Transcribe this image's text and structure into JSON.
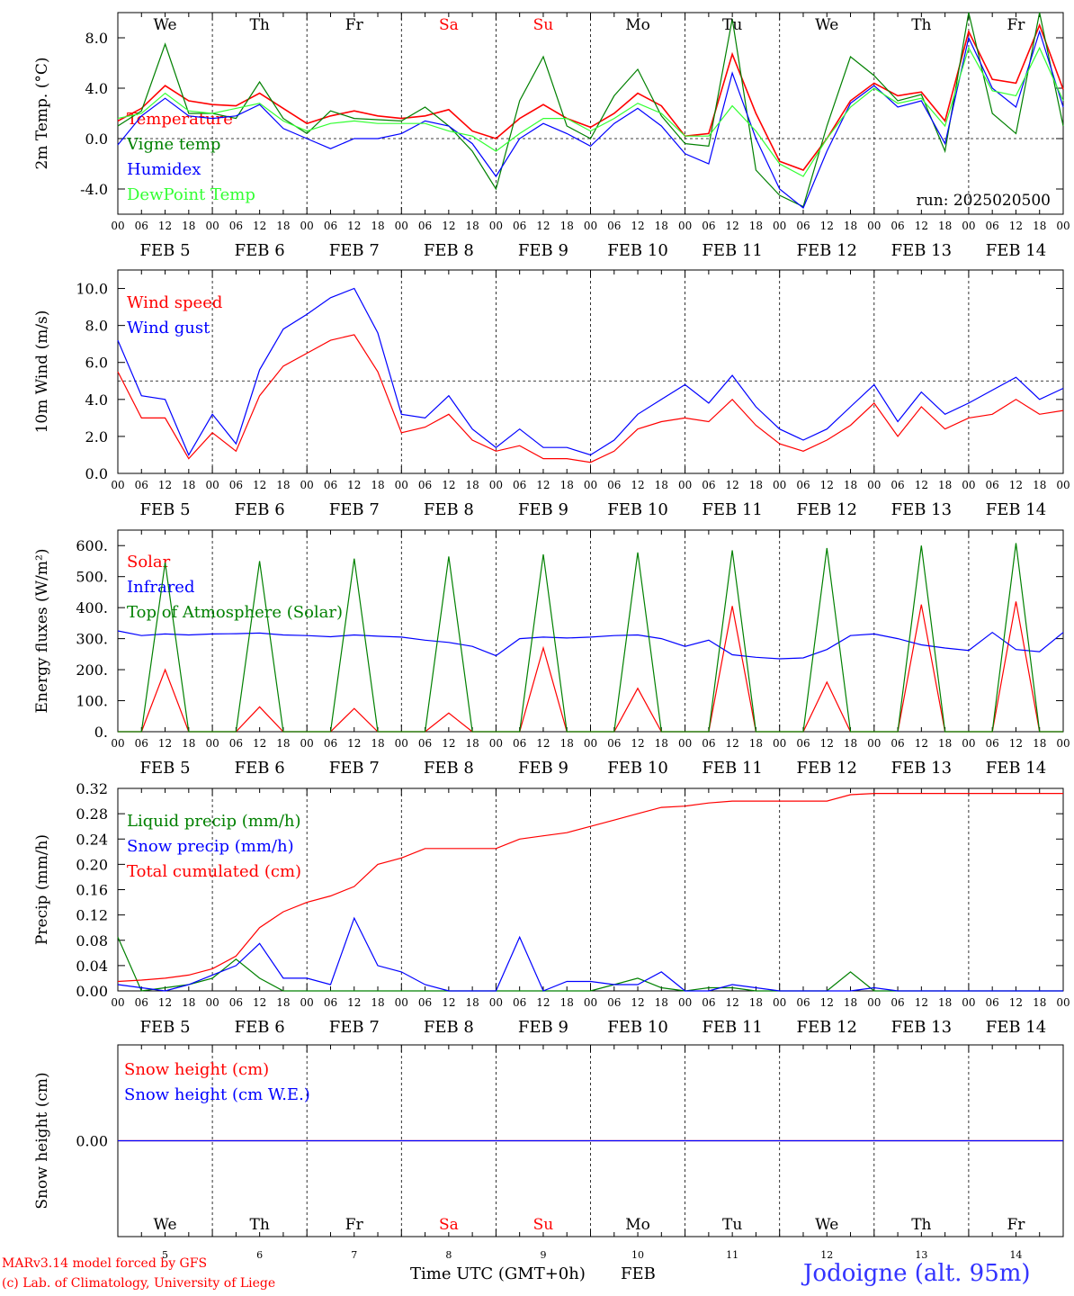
{
  "colors": {
    "red": "#ff0000",
    "green": "#008000",
    "blue": "#0000ff",
    "lightgreen": "#33ff33",
    "grid": "#000000",
    "location": "#3333ff"
  },
  "days": [
    "We",
    "Th",
    "Fr",
    "Sa",
    "Su",
    "Mo",
    "Tu",
    "We",
    "Th",
    "Fr"
  ],
  "weekend_day_indices": [
    3,
    4
  ],
  "date_labels": [
    "FEB  5",
    "FEB  6",
    "FEB  7",
    "FEB  8",
    "FEB  9",
    "FEB 10",
    "FEB 11",
    "FEB 12",
    "FEB 13",
    "FEB 14"
  ],
  "hour_labels": [
    "00",
    "06",
    "12",
    "18"
  ],
  "final_hour_label": "00",
  "bottom_day_numbers": [
    "5",
    "6",
    "7",
    "8",
    "9",
    "10",
    "11",
    "12",
    "13",
    "14"
  ],
  "xlabel": "Time UTC (GMT+0h)",
  "xlabel_month": "FEB",
  "credit_line1": "MARv3.14 model forced by GFS",
  "credit_line2": "(c) Lab. of Climatology, University of Liege",
  "location": "Jodoigne (alt. 95m)",
  "chart_data": [
    {
      "type": "line",
      "ylabel": "2m Temp. (°C)",
      "ylim": [
        -6,
        10
      ],
      "yticks": [
        "8.0",
        "4.0",
        "0.0",
        "-4.0"
      ],
      "ytick_values": [
        8,
        4,
        0,
        -4
      ],
      "reference_line": 0,
      "run_label": "run: 2025020500",
      "x_hours": [
        0,
        6,
        12,
        18,
        24,
        30,
        36,
        42,
        48,
        54,
        60,
        66,
        72,
        78,
        84,
        90,
        96,
        102,
        108,
        114,
        120,
        126,
        132,
        138,
        144,
        150,
        156,
        162,
        168,
        174,
        180,
        186,
        192,
        198,
        204,
        210,
        216,
        222,
        228,
        234,
        240
      ],
      "series": [
        {
          "name": "Temperature",
          "color": "red",
          "values": [
            1.4,
            2.4,
            4.2,
            3.0,
            2.7,
            2.6,
            3.6,
            2.4,
            1.2,
            1.8,
            2.2,
            1.8,
            1.6,
            1.8,
            2.3,
            0.6,
            0.0,
            1.6,
            2.7,
            1.6,
            0.9,
            2.0,
            3.6,
            2.6,
            0.2,
            0.4,
            6.7,
            2.0,
            -1.8,
            -2.5,
            0.0,
            3.0,
            4.4,
            3.4,
            3.7,
            1.4,
            8.5,
            4.7,
            4.4,
            9.0,
            3.9
          ]
        },
        {
          "name": "Vigne temp",
          "color": "green",
          "values": [
            1.0,
            2.2,
            7.5,
            2.0,
            2.0,
            1.6,
            4.5,
            1.6,
            0.4,
            2.2,
            1.6,
            1.5,
            1.4,
            2.5,
            1.0,
            -1.0,
            -4.0,
            3.0,
            6.5,
            1.0,
            0.0,
            3.4,
            5.5,
            1.8,
            -0.4,
            -0.6,
            9.5,
            -2.5,
            -4.5,
            -5.4,
            1.0,
            6.5,
            5.0,
            3.0,
            3.5,
            -1.0,
            10.0,
            2.0,
            0.4,
            10.0,
            1.0
          ]
        },
        {
          "name": "Humidex",
          "color": "blue",
          "values": [
            -0.5,
            1.8,
            3.2,
            1.8,
            1.6,
            1.8,
            2.7,
            0.8,
            0.0,
            -0.8,
            0.0,
            0.0,
            0.4,
            1.4,
            1.0,
            -0.4,
            -3.0,
            0.0,
            1.2,
            0.4,
            -0.6,
            1.2,
            2.4,
            1.0,
            -1.2,
            -2.0,
            5.2,
            0.0,
            -4.0,
            -5.5,
            -1.0,
            2.8,
            4.2,
            2.5,
            3.0,
            -0.4,
            8.0,
            4.0,
            2.5,
            8.5,
            2.5
          ]
        },
        {
          "name": "DewPoint Temp",
          "color": "lightgreen",
          "values": [
            1.6,
            2.0,
            3.6,
            2.2,
            2.0,
            2.4,
            2.8,
            1.4,
            0.6,
            1.2,
            1.4,
            1.2,
            1.2,
            1.2,
            0.6,
            0.2,
            -1.0,
            0.4,
            1.6,
            1.6,
            0.6,
            1.6,
            2.8,
            2.0,
            0.2,
            0.2,
            2.6,
            0.6,
            -2.0,
            -3.0,
            0.0,
            2.5,
            4.0,
            2.8,
            3.2,
            1.0,
            7.2,
            3.8,
            3.4,
            7.2,
            3.0
          ]
        }
      ]
    },
    {
      "type": "line",
      "ylabel": "10m Wind (m/s)",
      "ylim": [
        0,
        11
      ],
      "yticks": [
        "10.0",
        "8.0",
        "6.0",
        "4.0",
        "2.0",
        "0.0"
      ],
      "ytick_values": [
        10,
        8,
        6,
        4,
        2,
        0
      ],
      "reference_line": 5,
      "x_hours": [
        0,
        6,
        12,
        18,
        24,
        30,
        36,
        42,
        48,
        54,
        60,
        66,
        72,
        78,
        84,
        90,
        96,
        102,
        108,
        114,
        120,
        126,
        132,
        138,
        144,
        150,
        156,
        162,
        168,
        174,
        180,
        186,
        192,
        198,
        204,
        210,
        216,
        222,
        228,
        234,
        240
      ],
      "series": [
        {
          "name": "Wind speed",
          "color": "red",
          "values": [
            5.5,
            3.0,
            3.0,
            0.8,
            2.2,
            1.2,
            4.2,
            5.8,
            6.5,
            7.2,
            7.5,
            5.5,
            2.2,
            2.5,
            3.2,
            1.8,
            1.2,
            1.5,
            0.8,
            0.8,
            0.6,
            1.2,
            2.4,
            2.8,
            3.0,
            2.8,
            4.0,
            2.6,
            1.6,
            1.2,
            1.8,
            2.6,
            3.8,
            2.0,
            3.6,
            2.4,
            3.0,
            3.2,
            4.0,
            3.2,
            3.4
          ]
        },
        {
          "name": "Wind gust",
          "color": "blue",
          "values": [
            7.2,
            4.2,
            4.0,
            1.0,
            3.2,
            1.6,
            5.6,
            7.8,
            8.6,
            9.5,
            10.0,
            7.6,
            3.2,
            3.0,
            4.2,
            2.4,
            1.4,
            2.4,
            1.4,
            1.4,
            1.0,
            1.8,
            3.2,
            4.0,
            4.8,
            3.8,
            5.3,
            3.6,
            2.4,
            1.8,
            2.4,
            3.6,
            4.8,
            2.8,
            4.4,
            3.2,
            3.8,
            4.5,
            5.2,
            4.0,
            4.6
          ]
        }
      ]
    },
    {
      "type": "line",
      "ylabel": "Energy fluxes (W/m²)",
      "ylim": [
        0,
        650
      ],
      "yticks": [
        "600.",
        "500.",
        "400.",
        "300.",
        "200.",
        "100.",
        "0."
      ],
      "ytick_values": [
        600,
        500,
        400,
        300,
        200,
        100,
        0
      ],
      "x_hours": [
        0,
        6,
        12,
        18,
        24,
        30,
        36,
        42,
        48,
        54,
        60,
        66,
        72,
        78,
        84,
        90,
        96,
        102,
        108,
        114,
        120,
        126,
        132,
        138,
        144,
        150,
        156,
        162,
        168,
        174,
        180,
        186,
        192,
        198,
        204,
        210,
        216,
        222,
        228,
        234,
        240
      ],
      "series": [
        {
          "name": "Solar",
          "color": "red",
          "values": [
            0,
            0,
            200,
            0,
            0,
            0,
            80,
            0,
            0,
            0,
            75,
            0,
            0,
            0,
            60,
            0,
            0,
            0,
            270,
            0,
            0,
            0,
            140,
            0,
            0,
            0,
            405,
            0,
            0,
            0,
            160,
            0,
            0,
            0,
            410,
            0,
            0,
            0,
            420,
            0,
            0
          ]
        },
        {
          "name": "Infrared",
          "color": "blue",
          "values": [
            325,
            310,
            315,
            312,
            315,
            316,
            318,
            312,
            310,
            306,
            312,
            308,
            305,
            295,
            288,
            275,
            245,
            300,
            305,
            302,
            305,
            310,
            312,
            300,
            275,
            295,
            248,
            240,
            235,
            238,
            265,
            310,
            315,
            300,
            280,
            270,
            262,
            320,
            265,
            258,
            320
          ]
        },
        {
          "name": "Top of Atmosphere (Solar)",
          "color": "green",
          "values": [
            0,
            0,
            545,
            0,
            0,
            0,
            550,
            0,
            0,
            0,
            558,
            0,
            0,
            0,
            565,
            0,
            0,
            0,
            572,
            0,
            0,
            0,
            578,
            0,
            0,
            0,
            585,
            0,
            0,
            0,
            592,
            0,
            0,
            0,
            600,
            0,
            0,
            0,
            608,
            0,
            0
          ]
        }
      ]
    },
    {
      "type": "line",
      "ylabel": "Precip (mm/h)",
      "ylim": [
        0,
        0.32
      ],
      "yticks": [
        "0.32",
        "0.28",
        "0.24",
        "0.20",
        "0.16",
        "0.12",
        "0.08",
        "0.04",
        "0.00"
      ],
      "ytick_values": [
        0.32,
        0.28,
        0.24,
        0.2,
        0.16,
        0.12,
        0.08,
        0.04,
        0.0
      ],
      "x_hours": [
        0,
        6,
        12,
        18,
        24,
        30,
        36,
        42,
        48,
        54,
        60,
        66,
        72,
        78,
        84,
        90,
        96,
        102,
        108,
        114,
        120,
        126,
        132,
        138,
        144,
        150,
        156,
        162,
        168,
        174,
        180,
        186,
        192,
        198,
        204,
        210,
        216,
        222,
        228,
        234,
        240
      ],
      "series": [
        {
          "name": "Liquid precip (mm/h)",
          "color": "green",
          "values": [
            0.085,
            0.0,
            0.005,
            0.01,
            0.02,
            0.05,
            0.02,
            0.0,
            0.0,
            0.0,
            0.0,
            0.0,
            0.0,
            0.0,
            0.0,
            0.0,
            0.0,
            0.0,
            0.0,
            0.0,
            0.0,
            0.01,
            0.02,
            0.005,
            0.0,
            0.005,
            0.005,
            0.0,
            0.0,
            0.0,
            0.0,
            0.03,
            0.0,
            0.0,
            0.0,
            0.0,
            0.0,
            0.0,
            0.0,
            0.0,
            0.0
          ]
        },
        {
          "name": "Snow precip (mm/h)",
          "color": "blue",
          "values": [
            0.01,
            0.005,
            0.0,
            0.01,
            0.025,
            0.04,
            0.075,
            0.02,
            0.02,
            0.01,
            0.115,
            0.04,
            0.03,
            0.01,
            0.0,
            0.0,
            0.0,
            0.085,
            0.0,
            0.015,
            0.015,
            0.01,
            0.01,
            0.03,
            0.0,
            0.0,
            0.01,
            0.005,
            0.0,
            0.0,
            0.0,
            0.0,
            0.005,
            0.0,
            0.0,
            0.0,
            0.0,
            0.0,
            0.0,
            0.0,
            0.0
          ]
        },
        {
          "name": "Total cumulated (cm)",
          "color": "red",
          "values": [
            0.015,
            0.017,
            0.02,
            0.025,
            0.035,
            0.055,
            0.1,
            0.125,
            0.14,
            0.15,
            0.165,
            0.2,
            0.21,
            0.225,
            0.225,
            0.225,
            0.225,
            0.24,
            0.245,
            0.25,
            0.26,
            0.27,
            0.28,
            0.29,
            0.292,
            0.297,
            0.3,
            0.3,
            0.3,
            0.3,
            0.3,
            0.31,
            0.312,
            0.312,
            0.312,
            0.312,
            0.312,
            0.312,
            0.312,
            0.312,
            0.312
          ]
        }
      ]
    },
    {
      "type": "line",
      "ylabel": "Snow height (cm)",
      "ylim": [
        -1,
        1
      ],
      "yticks": [
        "0.00"
      ],
      "ytick_values": [
        0
      ],
      "x_hours": [
        0,
        240
      ],
      "series": [
        {
          "name": "Snow height (cm)",
          "color": "red",
          "values": [
            0,
            0
          ]
        },
        {
          "name": "Snow height (cm W.E.)",
          "color": "blue",
          "values": [
            0,
            0
          ]
        }
      ]
    }
  ]
}
